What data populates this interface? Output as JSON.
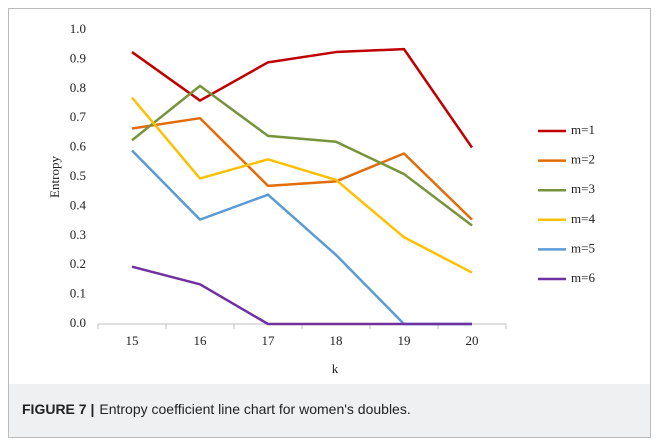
{
  "chart_data": {
    "type": "line",
    "caption": {
      "label": "FIGURE 7 |",
      "text": "Entropy coefficient line chart for women's doubles."
    },
    "xlabel": "k",
    "ylabel": "Entropy",
    "categories": [
      15,
      16,
      17,
      18,
      19,
      20
    ],
    "series": [
      {
        "name": "m=1",
        "color": "#c00000",
        "values": [
          0.925,
          0.76,
          0.89,
          0.925,
          0.935,
          0.6
        ]
      },
      {
        "name": "m=2",
        "color": "#e36c0a",
        "values": [
          0.665,
          0.7,
          0.47,
          0.485,
          0.58,
          0.355
        ]
      },
      {
        "name": "m=3",
        "color": "#77933c",
        "values": [
          0.625,
          0.81,
          0.64,
          0.62,
          0.51,
          0.335
        ]
      },
      {
        "name": "m=4",
        "color": "#ffc000",
        "values": [
          0.77,
          0.495,
          0.56,
          0.49,
          0.295,
          0.175
        ]
      },
      {
        "name": "m=5",
        "color": "#5b9bd5",
        "values": [
          0.59,
          0.355,
          0.44,
          0.235,
          0.0,
          0.0
        ]
      },
      {
        "name": "m=6",
        "color": "#7030a0",
        "values": [
          0.195,
          0.135,
          0.0,
          0.0,
          0.0,
          0.0
        ]
      }
    ],
    "ylim": [
      0,
      1
    ],
    "yticks": [
      {
        "value": 0,
        "label": "0.0"
      },
      0.1,
      0.2,
      0.3,
      0.4,
      0.5,
      0.6,
      0.7,
      0.8,
      0.9,
      {
        "value": 1,
        "label": "1.0"
      }
    ],
    "grid": false,
    "legend": "right"
  }
}
